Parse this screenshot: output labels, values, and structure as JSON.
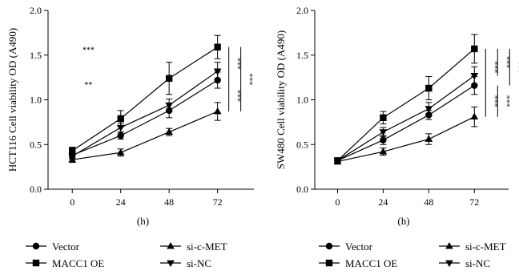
{
  "chart_data": [
    {
      "type": "line",
      "xlabel": "(h)",
      "ylabel": "HCT116 Cell viability OD (A490)",
      "x": [
        0,
        24,
        48,
        72
      ],
      "x_ticks": [
        "0",
        "24",
        "48",
        "72"
      ],
      "y_ticks": [
        "0.0",
        "0.5",
        "1.0",
        "1.5",
        "2.0"
      ],
      "xlim": [
        -12,
        90
      ],
      "ylim": [
        0,
        2.0
      ],
      "series": [
        {
          "name": "Vector",
          "marker": "circle",
          "values": [
            0.38,
            0.6,
            0.88,
            1.22
          ],
          "err": [
            0.03,
            0.04,
            0.08,
            0.09
          ]
        },
        {
          "name": "MACC1 OE",
          "marker": "square",
          "values": [
            0.43,
            0.79,
            1.24,
            1.59
          ],
          "err": [
            0.04,
            0.09,
            0.18,
            0.13
          ]
        },
        {
          "name": "si-c-MET",
          "marker": "triangle-up",
          "values": [
            0.33,
            0.41,
            0.64,
            0.87
          ],
          "err": [
            0.03,
            0.04,
            0.04,
            0.1
          ]
        },
        {
          "name": "si-NC",
          "marker": "triangle-down",
          "values": [
            0.37,
            0.69,
            0.94,
            1.32
          ],
          "err": [
            0.03,
            0.05,
            0.07,
            0.1
          ]
        }
      ],
      "annotations": {
        "stray": [
          {
            "text": "***",
            "x": 8,
            "y": 1.53
          },
          {
            "text": "**",
            "x": 8,
            "y": 1.14
          }
        ],
        "brackets": [
          {
            "text": "***",
            "y1": 1.59,
            "y2": 1.22,
            "level": 0
          },
          {
            "text": "***",
            "y1": 1.22,
            "y2": 0.87,
            "level": 0
          },
          {
            "text": "***",
            "y1": 1.59,
            "y2": 0.87,
            "level": 1
          }
        ]
      }
    },
    {
      "type": "line",
      "xlabel": "(h)",
      "ylabel": "SW480 Cell viability OD (A490)",
      "x": [
        0,
        24,
        48,
        72
      ],
      "x_ticks": [
        "0",
        "24",
        "48",
        "72"
      ],
      "y_ticks": [
        "0.0",
        "0.5",
        "1.0",
        "1.5",
        "2.0"
      ],
      "xlim": [
        -12,
        90
      ],
      "ylim": [
        0,
        2.0
      ],
      "series": [
        {
          "name": "Vector",
          "marker": "circle",
          "values": [
            0.32,
            0.55,
            0.83,
            1.16
          ],
          "err": [
            0.03,
            0.05,
            0.05,
            0.1
          ]
        },
        {
          "name": "MACC1 OE",
          "marker": "square",
          "values": [
            0.32,
            0.8,
            1.13,
            1.57
          ],
          "err": [
            0.03,
            0.07,
            0.13,
            0.16
          ]
        },
        {
          "name": "si-c-MET",
          "marker": "triangle-up",
          "values": [
            0.31,
            0.42,
            0.56,
            0.81
          ],
          "err": [
            0.03,
            0.04,
            0.06,
            0.11
          ]
        },
        {
          "name": "si-NC",
          "marker": "triangle-down",
          "values": [
            0.32,
            0.64,
            0.9,
            1.27
          ],
          "err": [
            0.03,
            0.05,
            0.07,
            0.1
          ]
        }
      ],
      "annotations": {
        "stray": [],
        "brackets": [
          {
            "text": "***",
            "y1": 1.57,
            "y2": 1.16,
            "level": 0
          },
          {
            "text": "***",
            "y1": 1.57,
            "y2": 1.27,
            "level": 1
          },
          {
            "text": "***",
            "y1": 1.57,
            "y2": 1.16,
            "level": 2
          },
          {
            "text": "***",
            "y1": 1.16,
            "y2": 0.81,
            "level": 0
          },
          {
            "text": "***",
            "y1": 1.16,
            "y2": 0.81,
            "level": 1
          }
        ]
      }
    }
  ],
  "legend": {
    "rows": [
      [
        {
          "label": "Vector",
          "marker": "circle"
        },
        {
          "label": "si-c-MET",
          "marker": "triangle-up"
        }
      ],
      [
        {
          "label": "MACC1 OE",
          "marker": "square"
        },
        {
          "label": "si-NC",
          "marker": "triangle-down"
        }
      ]
    ]
  }
}
